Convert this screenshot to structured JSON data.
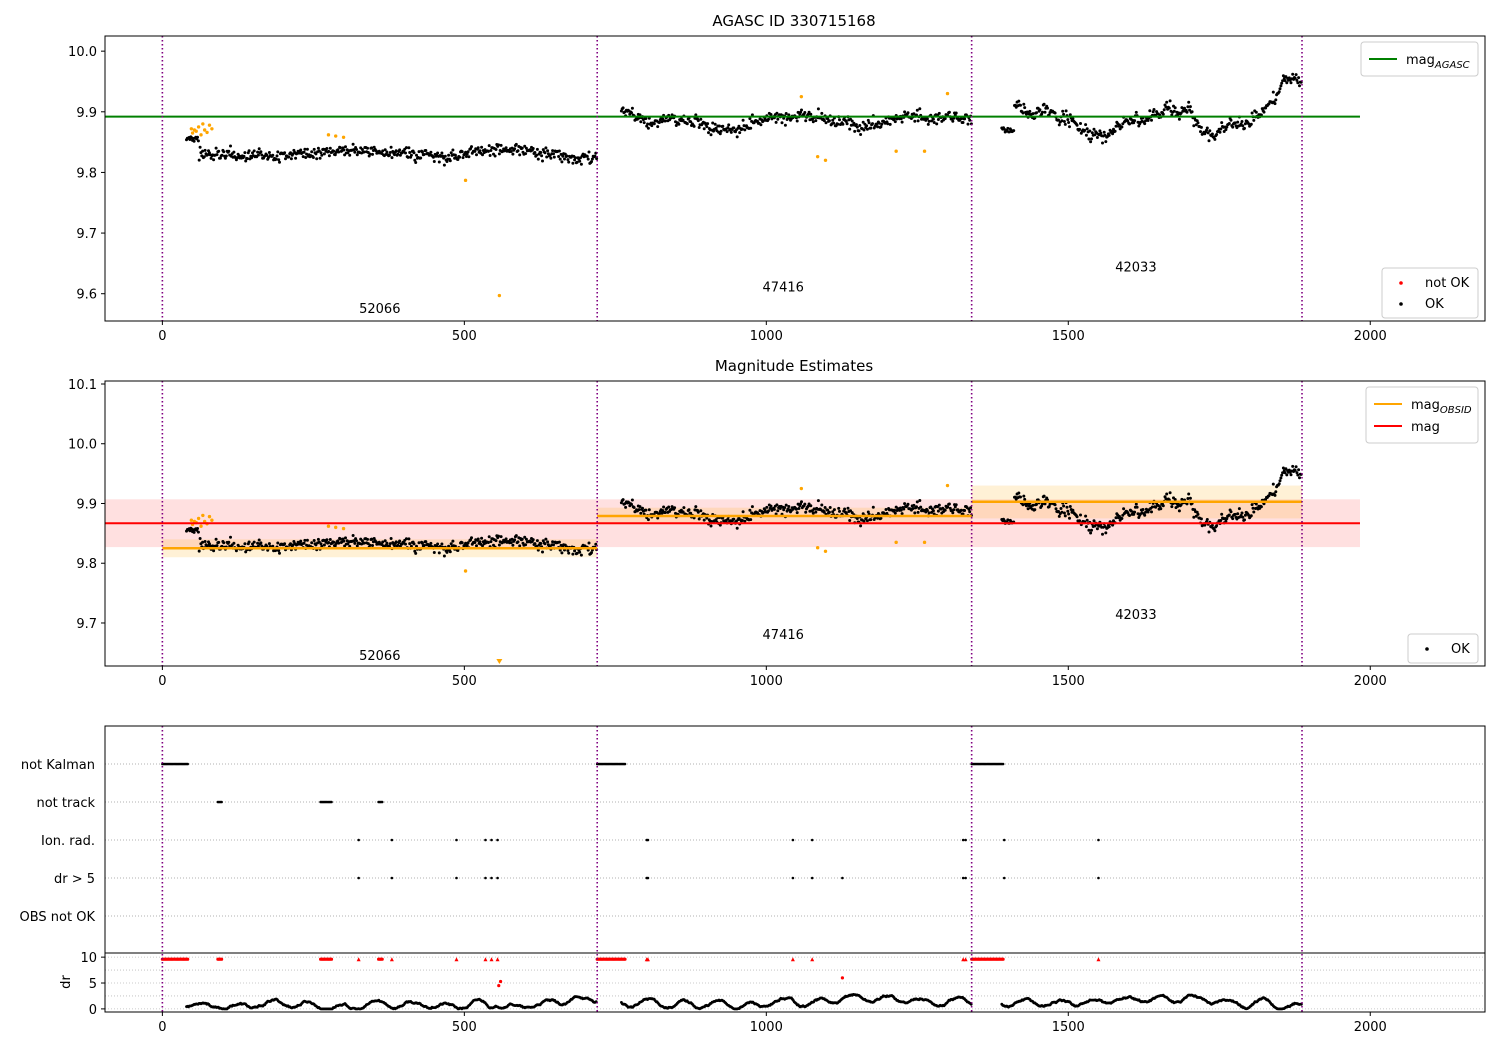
{
  "chart_data": [
    {
      "type": "scatter",
      "title": "AGASC ID 330715168",
      "xlim": [
        -95,
        2190
      ],
      "ylim": [
        9.555,
        10.025
      ],
      "xticks": [
        0,
        500,
        1000,
        1500,
        2000
      ],
      "yticks": [
        9.6,
        9.7,
        9.8,
        9.9,
        10.0
      ],
      "xtick_labels": [
        "0",
        "500",
        "1000",
        "1500",
        "2000"
      ],
      "ytick_labels": [
        "9.6",
        "9.7",
        "9.8",
        "9.9",
        "10.0"
      ],
      "obsid_boundaries": [
        0,
        720,
        1340,
        1887
      ],
      "obsid_labels": [
        {
          "text": "52066",
          "x": 360,
          "y": 9.575
        },
        {
          "text": "47416",
          "x": 1028,
          "y": 9.61
        },
        {
          "text": "42033",
          "x": 1612,
          "y": 9.643
        }
      ],
      "mag_agasc": {
        "value": 9.892,
        "x": [
          -95,
          1983
        ]
      },
      "legend_top": {
        "label": "mag",
        "sub": "AGASC",
        "color": "#008000",
        "position": "top-right"
      },
      "legend_bottom": [
        {
          "label": "not OK",
          "color": "#ff0000"
        },
        {
          "label": "OK",
          "color": "#000000"
        }
      ],
      "outlier_color": "#ffa500",
      "outliers": [
        [
          48,
          9.872
        ],
        [
          50,
          9.865
        ],
        [
          53,
          9.87
        ],
        [
          56,
          9.868
        ],
        [
          60,
          9.875
        ],
        [
          64,
          9.862
        ],
        [
          67,
          9.88
        ],
        [
          70,
          9.87
        ],
        [
          74,
          9.866
        ],
        [
          78,
          9.878
        ],
        [
          82,
          9.872
        ],
        [
          275,
          9.862
        ],
        [
          287,
          9.86
        ],
        [
          300,
          9.858
        ],
        [
          502,
          9.787
        ],
        [
          558,
          9.597
        ],
        [
          1058,
          9.925
        ],
        [
          1085,
          9.826
        ],
        [
          1098,
          9.82
        ],
        [
          1215,
          9.835
        ],
        [
          1262,
          9.835
        ],
        [
          1300,
          9.93
        ]
      ],
      "segments": [
        {
          "x0": 40,
          "x1": 720,
          "base": 9.825,
          "amp": 0.012,
          "noise": 0.02,
          "seed": 11,
          "start": 9.855
        },
        {
          "x0": 760,
          "x1": 1340,
          "base": 9.88,
          "amp": 0.02,
          "noise": 0.022,
          "seed": 23,
          "start": 9.9
        },
        {
          "x0": 1390,
          "x1": 1887,
          "base": 9.895,
          "amp": 0.05,
          "noise": 0.02,
          "seed": 37,
          "start": 9.87
        }
      ]
    },
    {
      "type": "scatter",
      "title": "Magnitude Estimates",
      "xlim": [
        -95,
        2190
      ],
      "ylim": [
        9.628,
        10.105
      ],
      "xticks": [
        0,
        500,
        1000,
        1500,
        2000
      ],
      "yticks": [
        9.7,
        9.8,
        9.9,
        10.0,
        10.1
      ],
      "xtick_labels": [
        "0",
        "500",
        "1000",
        "1500",
        "2000"
      ],
      "ytick_labels": [
        "9.7",
        "9.8",
        "9.9",
        "10.0",
        "10.1"
      ],
      "obsid_boundaries": [
        0,
        720,
        1340,
        1887
      ],
      "obsid_labels": [
        {
          "text": "52066",
          "x": 360,
          "y": 9.645
        },
        {
          "text": "47416",
          "x": 1028,
          "y": 9.68
        },
        {
          "text": "42033",
          "x": 1612,
          "y": 9.713
        }
      ],
      "mag": {
        "value": 9.867,
        "band": [
          9.827,
          9.907
        ],
        "x": [
          -95,
          1983
        ],
        "color": "#ff0000"
      },
      "mag_obsid": [
        {
          "x0": 0,
          "x1": 720,
          "value": 9.825,
          "band": [
            9.81,
            9.84
          ]
        },
        {
          "x0": 720,
          "x1": 1340,
          "value": 9.879,
          "band": [
            9.865,
            9.893
          ]
        },
        {
          "x0": 1340,
          "x1": 1887,
          "value": 9.903,
          "band": [
            9.875,
            9.93
          ]
        }
      ],
      "legend_top": [
        {
          "label": "mag",
          "sub": "OBSID",
          "color": "#ffa500"
        },
        {
          "label": "mag",
          "sub": "",
          "color": "#ff0000"
        }
      ],
      "legend_bottom": [
        {
          "label": "OK",
          "color": "#000000"
        }
      ]
    },
    {
      "type": "scatter",
      "title": "",
      "xlim": [
        -95,
        2190
      ],
      "xticks": [
        0,
        500,
        1000,
        1500,
        2000
      ],
      "xtick_labels": [
        "0",
        "500",
        "1000",
        "1500",
        "2000"
      ],
      "flag_labels": [
        "not Kalman",
        "not track",
        "Ion. rad.",
        "dr > 5",
        "OBS not OK"
      ],
      "flags": {
        "not Kalman": [
          [
            0,
            42
          ],
          [
            720,
            766
          ],
          [
            1340,
            1392
          ]
        ],
        "not track": [
          [
            92,
            98
          ],
          [
            262,
            280
          ],
          [
            358,
            364
          ]
        ],
        "Ion. rad.": [
          325,
          380,
          487,
          535,
          545,
          555,
          802,
          804,
          1044,
          1076,
          1326,
          1330,
          1394,
          1550
        ],
        "dr > 5": [
          325,
          380,
          487,
          535,
          545,
          555,
          802,
          804,
          1044,
          1076,
          1126,
          1326,
          1330,
          1394,
          1550
        ],
        "OBS not OK": []
      },
      "dr": {
        "ylim": [
          -0.6,
          10.8
        ],
        "yticks": [
          0,
          5,
          10
        ],
        "ytick_labels": [
          "0",
          "5",
          "10"
        ],
        "ylabel": "dr",
        "clipped_marker_value": 9.6,
        "clipped_color": "#ff0000",
        "clipped_x_ranges": [
          [
            0,
            42
          ],
          [
            92,
            98
          ],
          [
            262,
            280
          ],
          [
            358,
            364
          ],
          [
            720,
            766
          ],
          [
            1340,
            1392
          ]
        ],
        "clipped_x_points": [
          325,
          380,
          487,
          535,
          545,
          555,
          802,
          804,
          1044,
          1076,
          1326,
          1330,
          1550
        ],
        "red_points": [
          [
            557,
            4.5
          ],
          [
            560,
            5.3
          ],
          [
            1126,
            6.0
          ]
        ],
        "segments": [
          [
            40,
            720
          ],
          [
            760,
            1340
          ],
          [
            1390,
            1887
          ]
        ]
      }
    }
  ]
}
